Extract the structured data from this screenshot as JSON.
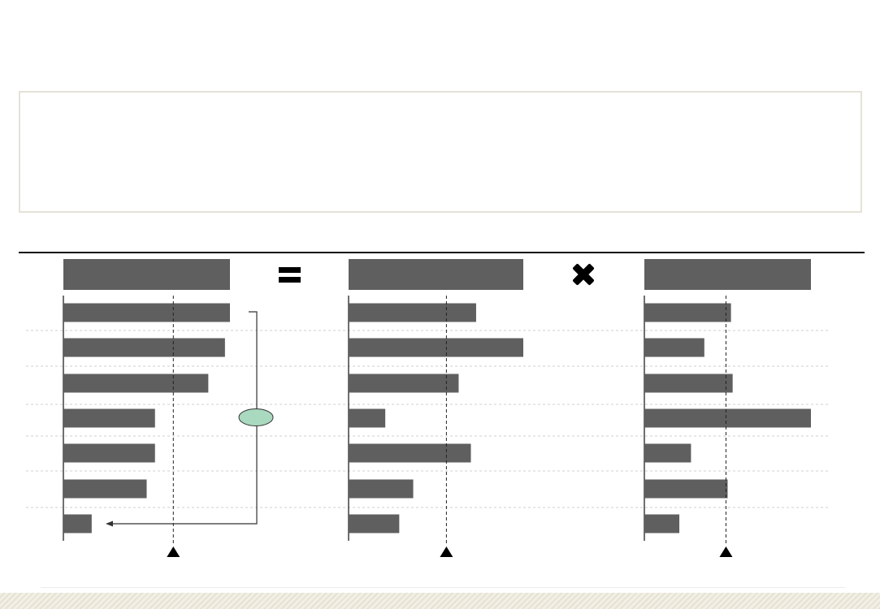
{
  "colors": {
    "bar": "#5f5f5f",
    "axis": "#222222",
    "grid": "#cfcfcf",
    "oval_fill": "#a9d9bf",
    "bracket": "#333333",
    "marker": "#000000"
  },
  "operators": {
    "equals_icon": "equals-icon",
    "times_icon": "multiply-icon"
  },
  "chart_data": [
    {
      "type": "bar",
      "orientation": "horizontal",
      "header": "",
      "values": [
        1.0,
        0.97,
        0.87,
        0.55,
        0.55,
        0.5,
        0.17
      ],
      "average": 0.66,
      "xlim": [
        0,
        1
      ]
    },
    {
      "type": "bar",
      "orientation": "horizontal",
      "header": "",
      "values": [
        0.73,
        1.0,
        0.63,
        0.21,
        0.7,
        0.37,
        0.29
      ],
      "average": 0.56,
      "xlim": [
        0,
        1
      ]
    },
    {
      "type": "bar",
      "orientation": "horizontal",
      "header": "",
      "values": [
        0.52,
        0.36,
        0.53,
        1.0,
        0.28,
        0.5,
        0.21
      ],
      "average": 0.49,
      "xlim": [
        0,
        1
      ]
    }
  ]
}
